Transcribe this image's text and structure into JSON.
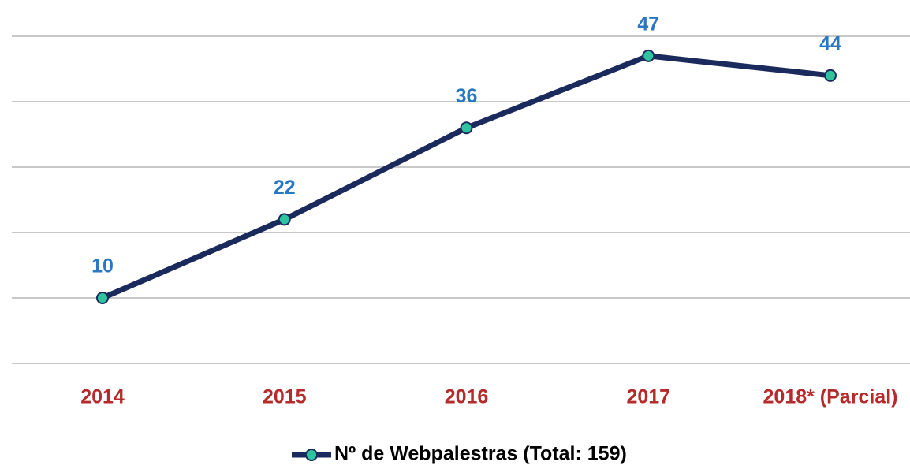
{
  "chart_data": {
    "type": "line",
    "categories": [
      "2014",
      "2015",
      "2016",
      "2017",
      "2018* (Parcial)"
    ],
    "series": [
      {
        "name": "Nº de Webpalestras (Total: 159)",
        "color": "#1b2a5c",
        "marker_color": "#2ec4a0",
        "values": [
          10,
          22,
          36,
          47,
          44
        ]
      }
    ],
    "ylim": [
      0,
      50
    ],
    "yticks": [
      0,
      10,
      20,
      30,
      40,
      50
    ],
    "grid": true,
    "legend": "bottom"
  }
}
